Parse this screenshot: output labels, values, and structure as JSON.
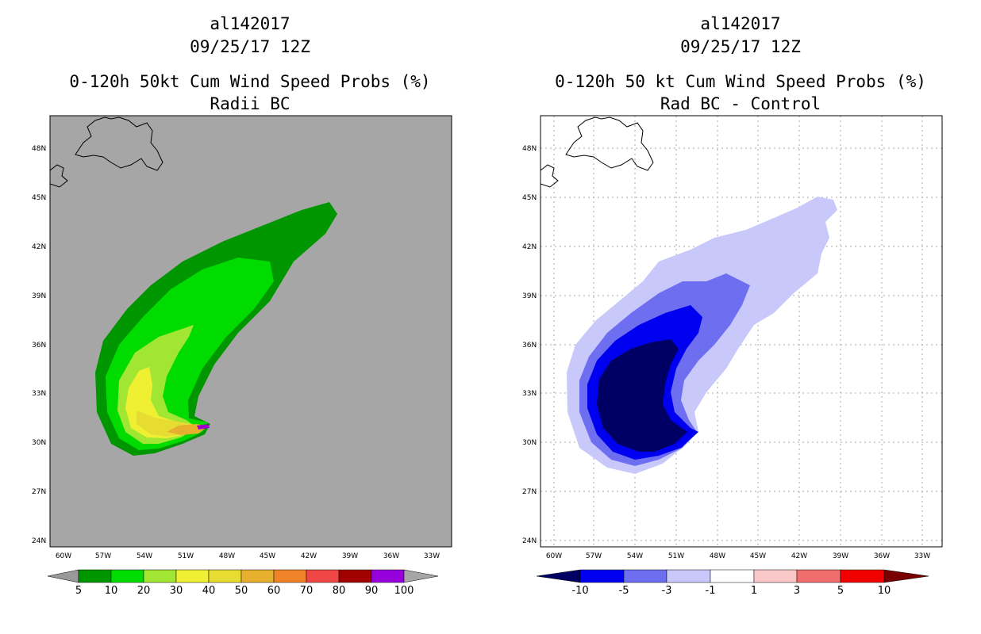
{
  "left_panel": {
    "storm_id": "al142017",
    "datetime": "09/25/17 12Z",
    "title": "0-120h 50kt Cum Wind Speed Probs (%)",
    "subtitle": "Radii BC",
    "lat_labels": [
      "48N",
      "45N",
      "42N",
      "39N",
      "36N",
      "33N",
      "30N",
      "27N",
      "24N"
    ],
    "lon_labels": [
      "60W",
      "57W",
      "54W",
      "51W",
      "48W",
      "45W",
      "42W",
      "39W",
      "36W",
      "33W"
    ],
    "colorbar": {
      "labels": [
        "5",
        "10",
        "20",
        "30",
        "40",
        "50",
        "60",
        "70",
        "80",
        "90",
        "100"
      ],
      "colors": [
        "#9a9a9a",
        "#009600",
        "#00dc00",
        "#a0e632",
        "#f0f032",
        "#e6dc32",
        "#e6af2d",
        "#f08228",
        "#f04646",
        "#a00000",
        "#9600dc",
        "#a6a6a6"
      ]
    },
    "colors": {
      "background": "#a6a6a6",
      "c5": "#009600",
      "c10": "#00dc00",
      "c20": "#a0e632",
      "c30": "#f0f032",
      "c40": "#e6dc32",
      "c50": "#e6af2d",
      "c90": "#a000c8"
    }
  },
  "right_panel": {
    "storm_id": "al142017",
    "datetime": "09/25/17 12Z",
    "title": "0-120h 50 kt Cum Wind Speed Probs (%)",
    "subtitle": "Rad BC - Control",
    "lat_labels": [
      "48N",
      "45N",
      "42N",
      "39N",
      "36N",
      "33N",
      "30N",
      "27N",
      "24N"
    ],
    "lon_labels": [
      "60W",
      "57W",
      "54W",
      "51W",
      "48W",
      "45W",
      "42W",
      "39W",
      "36W",
      "33W"
    ],
    "colorbar": {
      "labels": [
        "-10",
        "-5",
        "-3",
        "-1",
        "1",
        "3",
        "5",
        "10"
      ],
      "colors": [
        "#000064",
        "#0000f0",
        "#6e6ef0",
        "#c8c8fa",
        "#ffffff",
        "#fac8c8",
        "#f06e6e",
        "#f00000",
        "#780000"
      ]
    },
    "colors": {
      "background": "#ffffff",
      "c1": "#c8c8fa",
      "c3": "#6e6ef0",
      "c5": "#0000f0",
      "c10": "#000064"
    }
  }
}
